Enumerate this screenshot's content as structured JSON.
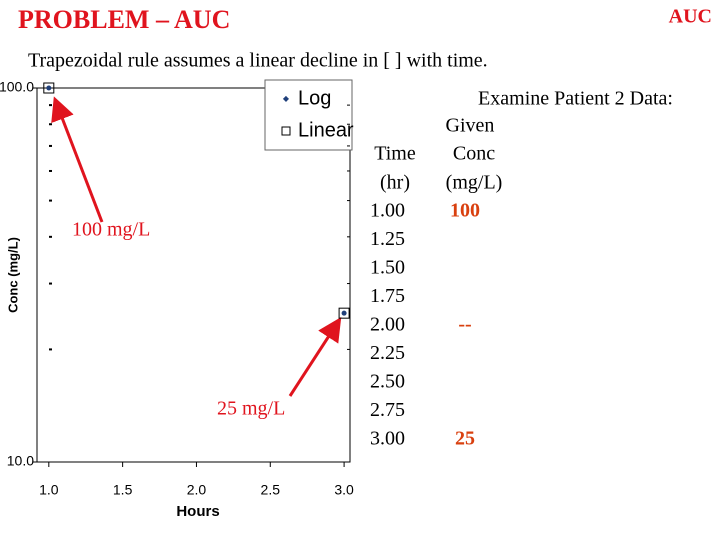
{
  "title": "PROBLEM – AUC",
  "header_right": "AUC",
  "subtitle": "Trapezoidal rule assumes a linear decline in [ ] with time.",
  "chart_data": {
    "type": "scatter",
    "x_label": "Hours",
    "y_label": "Conc (mg/L)",
    "x": [
      1.0,
      3.0
    ],
    "series": [
      {
        "name": "Log",
        "color": "#1f3f7a",
        "values": [
          100,
          25
        ]
      }
    ],
    "legend_extra": [
      "Linear"
    ],
    "xlim": [
      0.92,
      3.04
    ],
    "ylim": [
      10,
      100
    ],
    "log_y": true,
    "xticks": [
      {
        "value": 1.0,
        "label": "1.0"
      },
      {
        "value": 1.5,
        "label": "1.5"
      },
      {
        "value": 2.0,
        "label": "2.0"
      },
      {
        "value": 2.5,
        "label": "2.5"
      },
      {
        "value": 3.0,
        "label": "3.0"
      }
    ],
    "yticks": [
      {
        "value": 10,
        "label": "10.0"
      },
      {
        "value": 100,
        "label": "100.0"
      }
    ],
    "minor_yticks": [
      20,
      30,
      40,
      50,
      60,
      70,
      80,
      90
    ],
    "annotations": [
      {
        "text": "100 mg/L",
        "color": "#e0141e"
      },
      {
        "text": "25 mg/L",
        "color": "#e0141e"
      }
    ]
  },
  "table": {
    "heading": "Examine Patient 2 Data:",
    "group_label": "Given",
    "columns": [
      "Time",
      "Conc"
    ],
    "units": [
      "(hr)",
      "(mg/L)"
    ],
    "rows": [
      [
        "1.00",
        "100"
      ],
      [
        "1.25",
        null
      ],
      [
        "1.50",
        null
      ],
      [
        "1.75",
        null
      ],
      [
        "2.00",
        "--"
      ],
      [
        "2.25",
        null
      ],
      [
        "2.50",
        null
      ],
      [
        "2.75",
        null
      ],
      [
        "3.00",
        "25"
      ]
    ]
  }
}
